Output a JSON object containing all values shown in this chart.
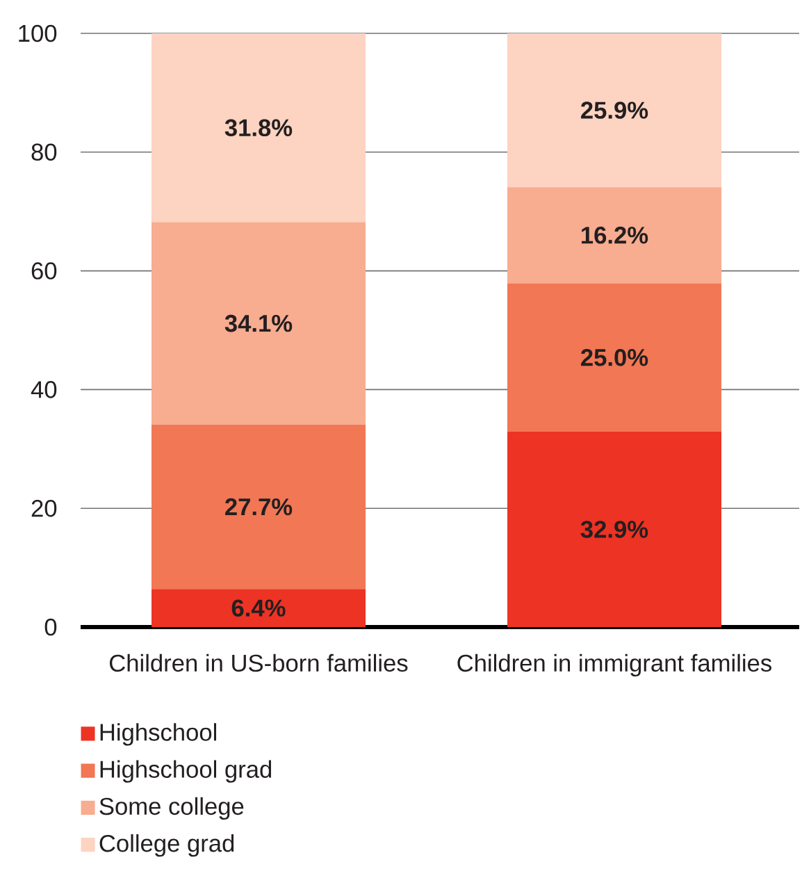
{
  "chart_data": {
    "type": "bar",
    "stacked": true,
    "categories": [
      "Children in US-born families",
      "Children in immigrant families"
    ],
    "series": [
      {
        "name": "Highschool",
        "color": "#ec3324",
        "values": [
          6.4,
          32.9
        ],
        "value_labels": [
          "6.4%",
          "32.9%"
        ]
      },
      {
        "name": "Highschool grad",
        "color": "#f17755",
        "values": [
          27.7,
          25.0
        ],
        "value_labels": [
          "27.7%",
          "25.0%"
        ]
      },
      {
        "name": "Some college",
        "color": "#f8ac90",
        "values": [
          34.1,
          16.2
        ],
        "value_labels": [
          "34.1%",
          "16.2%"
        ]
      },
      {
        "name": "College grad",
        "color": "#fdd3c1",
        "values": [
          31.8,
          25.9
        ],
        "value_labels": [
          "31.8%",
          "25.9%"
        ]
      }
    ],
    "ylim": [
      0,
      100
    ],
    "yticks": [
      0,
      20,
      40,
      60,
      80,
      100
    ],
    "grid": "y",
    "legend": "bottom left"
  }
}
